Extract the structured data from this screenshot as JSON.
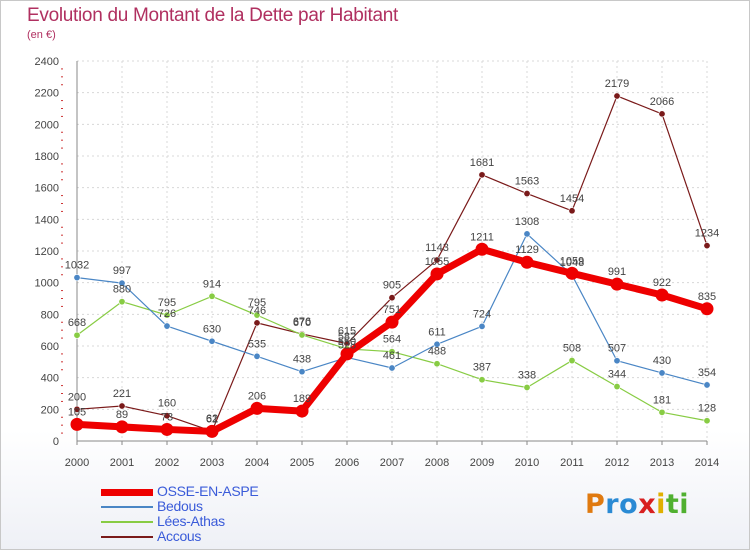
{
  "title": "Evolution du Montant de la Dette par Habitant",
  "unit": "(en €)",
  "logo": {
    "letters": [
      "P",
      "r",
      "o",
      "x",
      "i",
      "t",
      "i"
    ],
    "colors": [
      "#e07a10",
      "#2a8ad4",
      "#2a8ad4",
      "#d82020",
      "#e0b000",
      "#50b030",
      "#50b030"
    ]
  },
  "chart_data": {
    "type": "line",
    "x": [
      "2000",
      "2001",
      "2002",
      "2003",
      "2004",
      "2005",
      "2006",
      "2007",
      "2008",
      "2009",
      "2010",
      "2011",
      "2012",
      "2013",
      "2014"
    ],
    "ylim": [
      0,
      2400
    ],
    "yticks": [
      "0",
      "200",
      "400",
      "600",
      "800",
      "1000",
      "1200",
      "1400",
      "1600",
      "1800",
      "2000",
      "2200",
      "2400"
    ],
    "grid": true,
    "series": [
      {
        "name": "Accous",
        "color": "#7a1a1a",
        "width": 1.2,
        "marker": 3.2,
        "values": [
          200,
          221,
          160,
          62,
          746,
          676,
          615,
          905,
          1143,
          1681,
          1563,
          1454,
          2179,
          2066,
          1234
        ],
        "labels": [
          "200",
          "221",
          "160",
          "62",
          "746",
          "676",
          "615",
          "905",
          "1143",
          "1681",
          "1563",
          "1454",
          "2179",
          "2066",
          "1234"
        ]
      },
      {
        "name": "Lées-Athas",
        "color": "#88cc44",
        "width": 1.2,
        "marker": 3.2,
        "values": [
          668,
          880,
          795,
          914,
          795,
          670,
          582,
          564,
          488,
          387,
          338,
          508,
          344,
          181,
          128
        ],
        "labels": [
          "668",
          "880",
          "795",
          "914",
          "795",
          "670",
          "582",
          "564",
          "488",
          "387",
          "338",
          "508",
          "344",
          "181",
          "128"
        ]
      },
      {
        "name": "Bedous",
        "color": "#4a86c5",
        "width": 1.2,
        "marker": 3.2,
        "values": [
          1032,
          997,
          726,
          630,
          535,
          438,
          528,
          461,
          611,
          724,
          1308,
          1048,
          507,
          430,
          354
        ],
        "labels": [
          "1032",
          "997",
          "726",
          "630",
          "535",
          "438",
          "528",
          "461",
          "611",
          "724",
          "1308",
          "1048",
          "507",
          "430",
          "354"
        ]
      },
      {
        "name": "OSSE-EN-ASPE",
        "color": "#ee0000",
        "width": 7,
        "marker": 6.5,
        "values": [
          105,
          89,
          73,
          61,
          206,
          189,
          550,
          751,
          1055,
          1211,
          1129,
          1059,
          991,
          922,
          835
        ],
        "labels": [
          "105",
          "89",
          "73",
          "61",
          "206",
          "189",
          "550",
          "751",
          "1055",
          "1211",
          "1129",
          "1059",
          "991",
          "922",
          "835"
        ]
      }
    ]
  },
  "legend": [
    {
      "name": "OSSE-EN-ASPE",
      "color": "#ee0000",
      "thickness": 7
    },
    {
      "name": "Bedous",
      "color": "#4a86c5",
      "thickness": 1.5
    },
    {
      "name": "Lées-Athas",
      "color": "#88cc44",
      "thickness": 1.5
    },
    {
      "name": "Accous",
      "color": "#7a1a1a",
      "thickness": 1.5
    }
  ]
}
